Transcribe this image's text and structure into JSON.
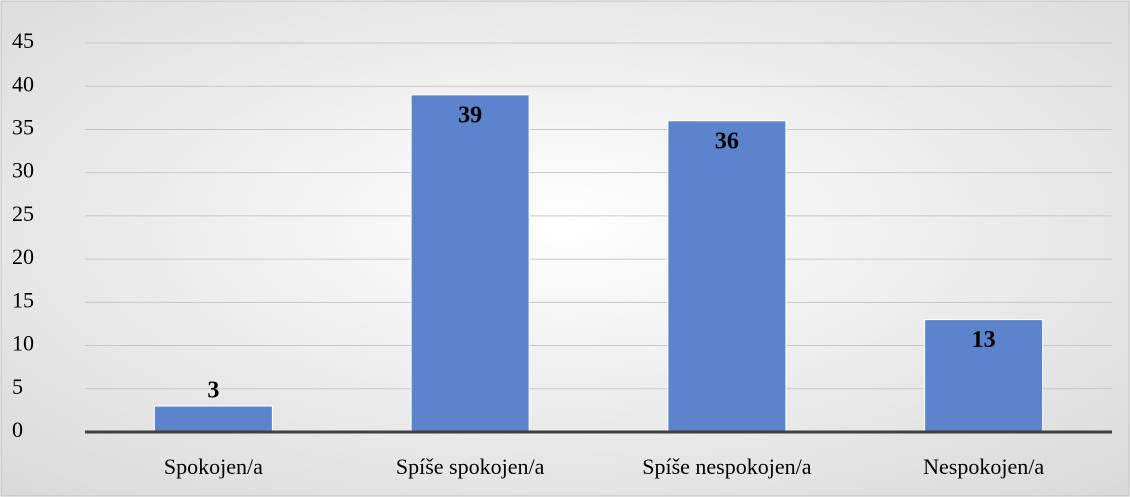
{
  "chart_data": {
    "type": "bar",
    "categories": [
      "Spokojen/a",
      "Spíše spokojen/a",
      "Spíše nespokojen/a",
      "Nespokojen/a"
    ],
    "values": [
      3,
      39,
      36,
      13
    ],
    "color": "#5b84cc",
    "ylim": [
      0,
      45
    ],
    "yticks": [
      0,
      5,
      10,
      15,
      20,
      25,
      30,
      35,
      40,
      45
    ],
    "grid": true
  }
}
